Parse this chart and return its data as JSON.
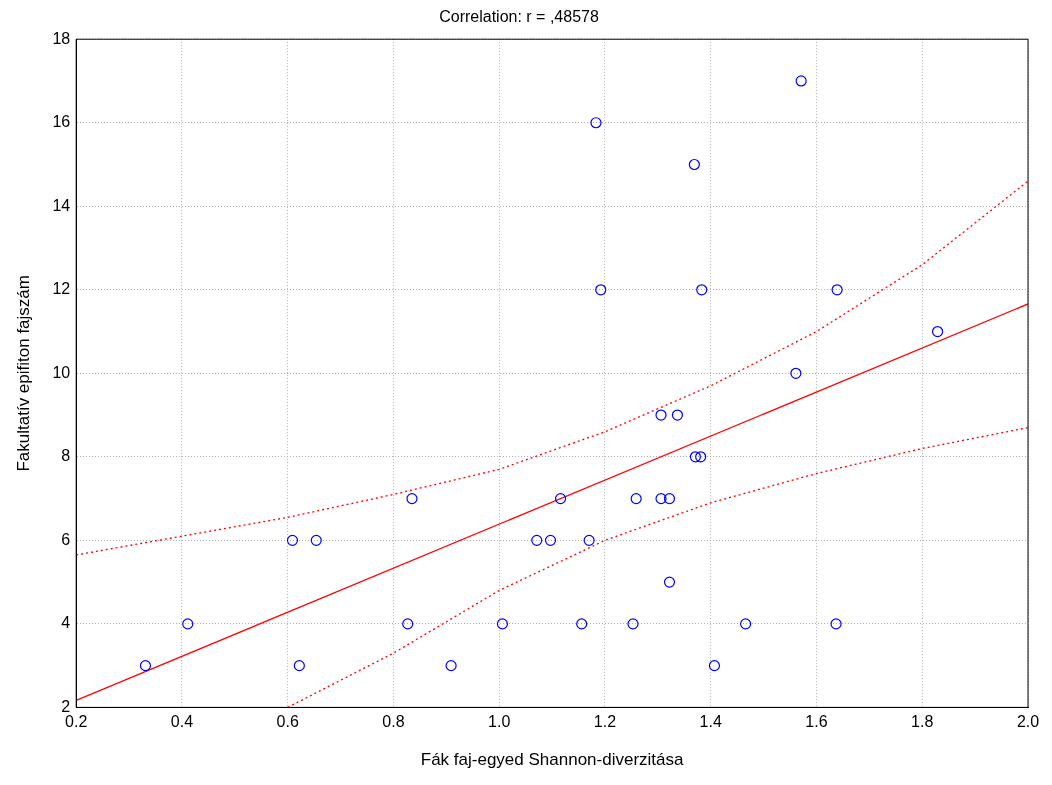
{
  "chart_data": {
    "type": "scatter",
    "title": "Correlation: r = ,48578",
    "xlabel": "Fák faj-egyed Shannon-diverzitása",
    "ylabel": "Fakultatív epifiton fajszám",
    "xlim": [
      0.2,
      2.0
    ],
    "xticks": [
      0.2,
      0.4,
      0.6,
      0.8,
      {
        "value": 1,
        "label": "1.0"
      },
      1.2,
      1.4,
      1.6,
      1.8,
      {
        "value": 2,
        "label": "2.0"
      }
    ],
    "ylim": [
      2,
      18
    ],
    "yticks": [
      2,
      4,
      6,
      8,
      10,
      12,
      14,
      16,
      18
    ],
    "grid": true,
    "legend": false,
    "marker": "circle",
    "series": [
      {
        "type": "scatter",
        "color": "#0000ff",
        "x": [
          0.331,
          0.411,
          0.609,
          0.622,
          0.654,
          0.827,
          0.835,
          0.909,
          1.006,
          1.071,
          1.097,
          1.116,
          1.156,
          1.17,
          1.183,
          1.192,
          1.253,
          1.259,
          1.306,
          1.306,
          1.322,
          1.322,
          1.337,
          1.369,
          1.371,
          1.381,
          1.383,
          1.407,
          1.466,
          1.561,
          1.571,
          1.637,
          1.639,
          1.829
        ],
        "values": [
          3,
          4,
          6,
          3,
          6,
          4,
          7,
          3,
          4,
          6,
          6,
          7,
          4,
          6,
          16,
          12,
          4,
          7,
          9,
          7,
          7,
          5,
          9,
          15,
          8,
          8,
          12,
          3,
          4,
          10,
          17,
          4,
          12,
          11
        ]
      },
      {
        "type": "line",
        "color": "#ff0000",
        "marker": "none",
        "line_style": "solid",
        "x": [
          0.2,
          2.0
        ],
        "values": [
          2.17,
          11.66
        ]
      },
      {
        "type": "line",
        "color": "#ff0000",
        "marker": "none",
        "line_style": "dotted",
        "x": [
          0.2,
          0.4,
          0.6,
          0.8,
          1.0,
          1.2,
          1.4,
          1.6,
          1.8,
          2.0
        ],
        "values": [
          5.65,
          6.1,
          6.55,
          7.1,
          7.7,
          8.6,
          9.7,
          11.0,
          12.6,
          14.6
        ]
      },
      {
        "type": "line",
        "color": "#ff0000",
        "marker": "none",
        "line_style": "dotted",
        "x": [
          0.6,
          0.8,
          1.0,
          1.2,
          1.4,
          1.6,
          1.8,
          2.0
        ],
        "values": [
          2.0,
          3.3,
          4.8,
          6.0,
          6.9,
          7.6,
          8.2,
          8.7
        ]
      }
    ]
  }
}
